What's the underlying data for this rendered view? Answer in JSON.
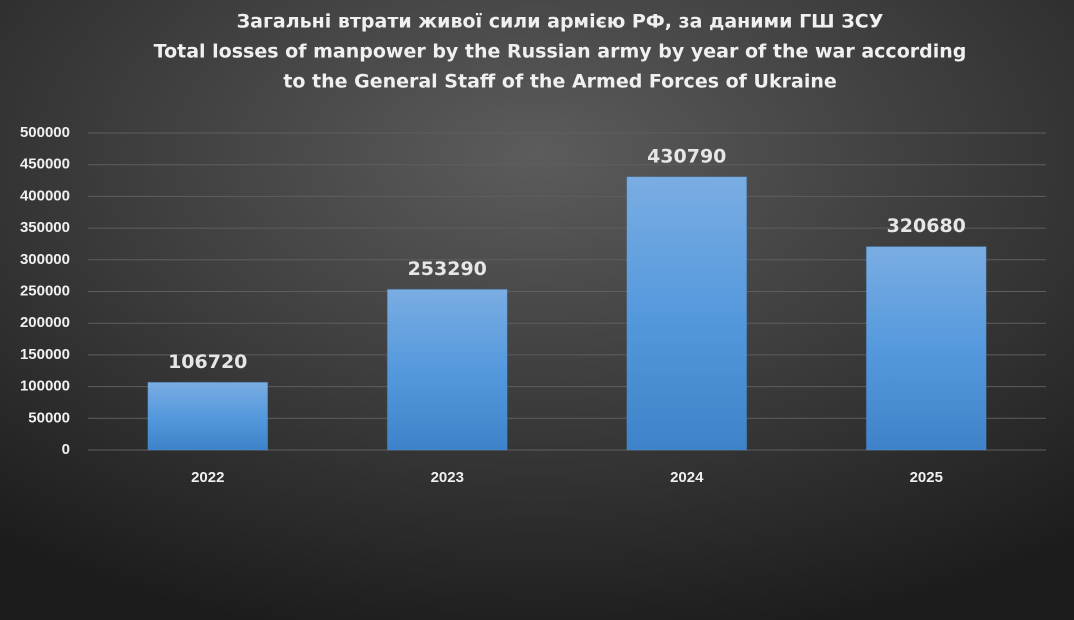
{
  "chart_data": {
    "type": "bar",
    "title": [
      "Загальні втрати живої сили армією РФ, за даними ГШ ЗСУ",
      "Total losses of manpower by the Russian army by year of the war according",
      "to the General Staff of the Armed Forces of Ukraine"
    ],
    "categories": [
      "2022",
      "2023",
      "2024",
      "2025"
    ],
    "values": [
      106720,
      253290,
      430790,
      320680
    ],
    "color": "#4f94d9",
    "ylim": [
      0,
      500000
    ],
    "yticks": [
      0,
      50000,
      100000,
      150000,
      200000,
      250000,
      300000,
      350000,
      400000,
      450000,
      500000
    ],
    "grid": true,
    "data_labels": true
  }
}
